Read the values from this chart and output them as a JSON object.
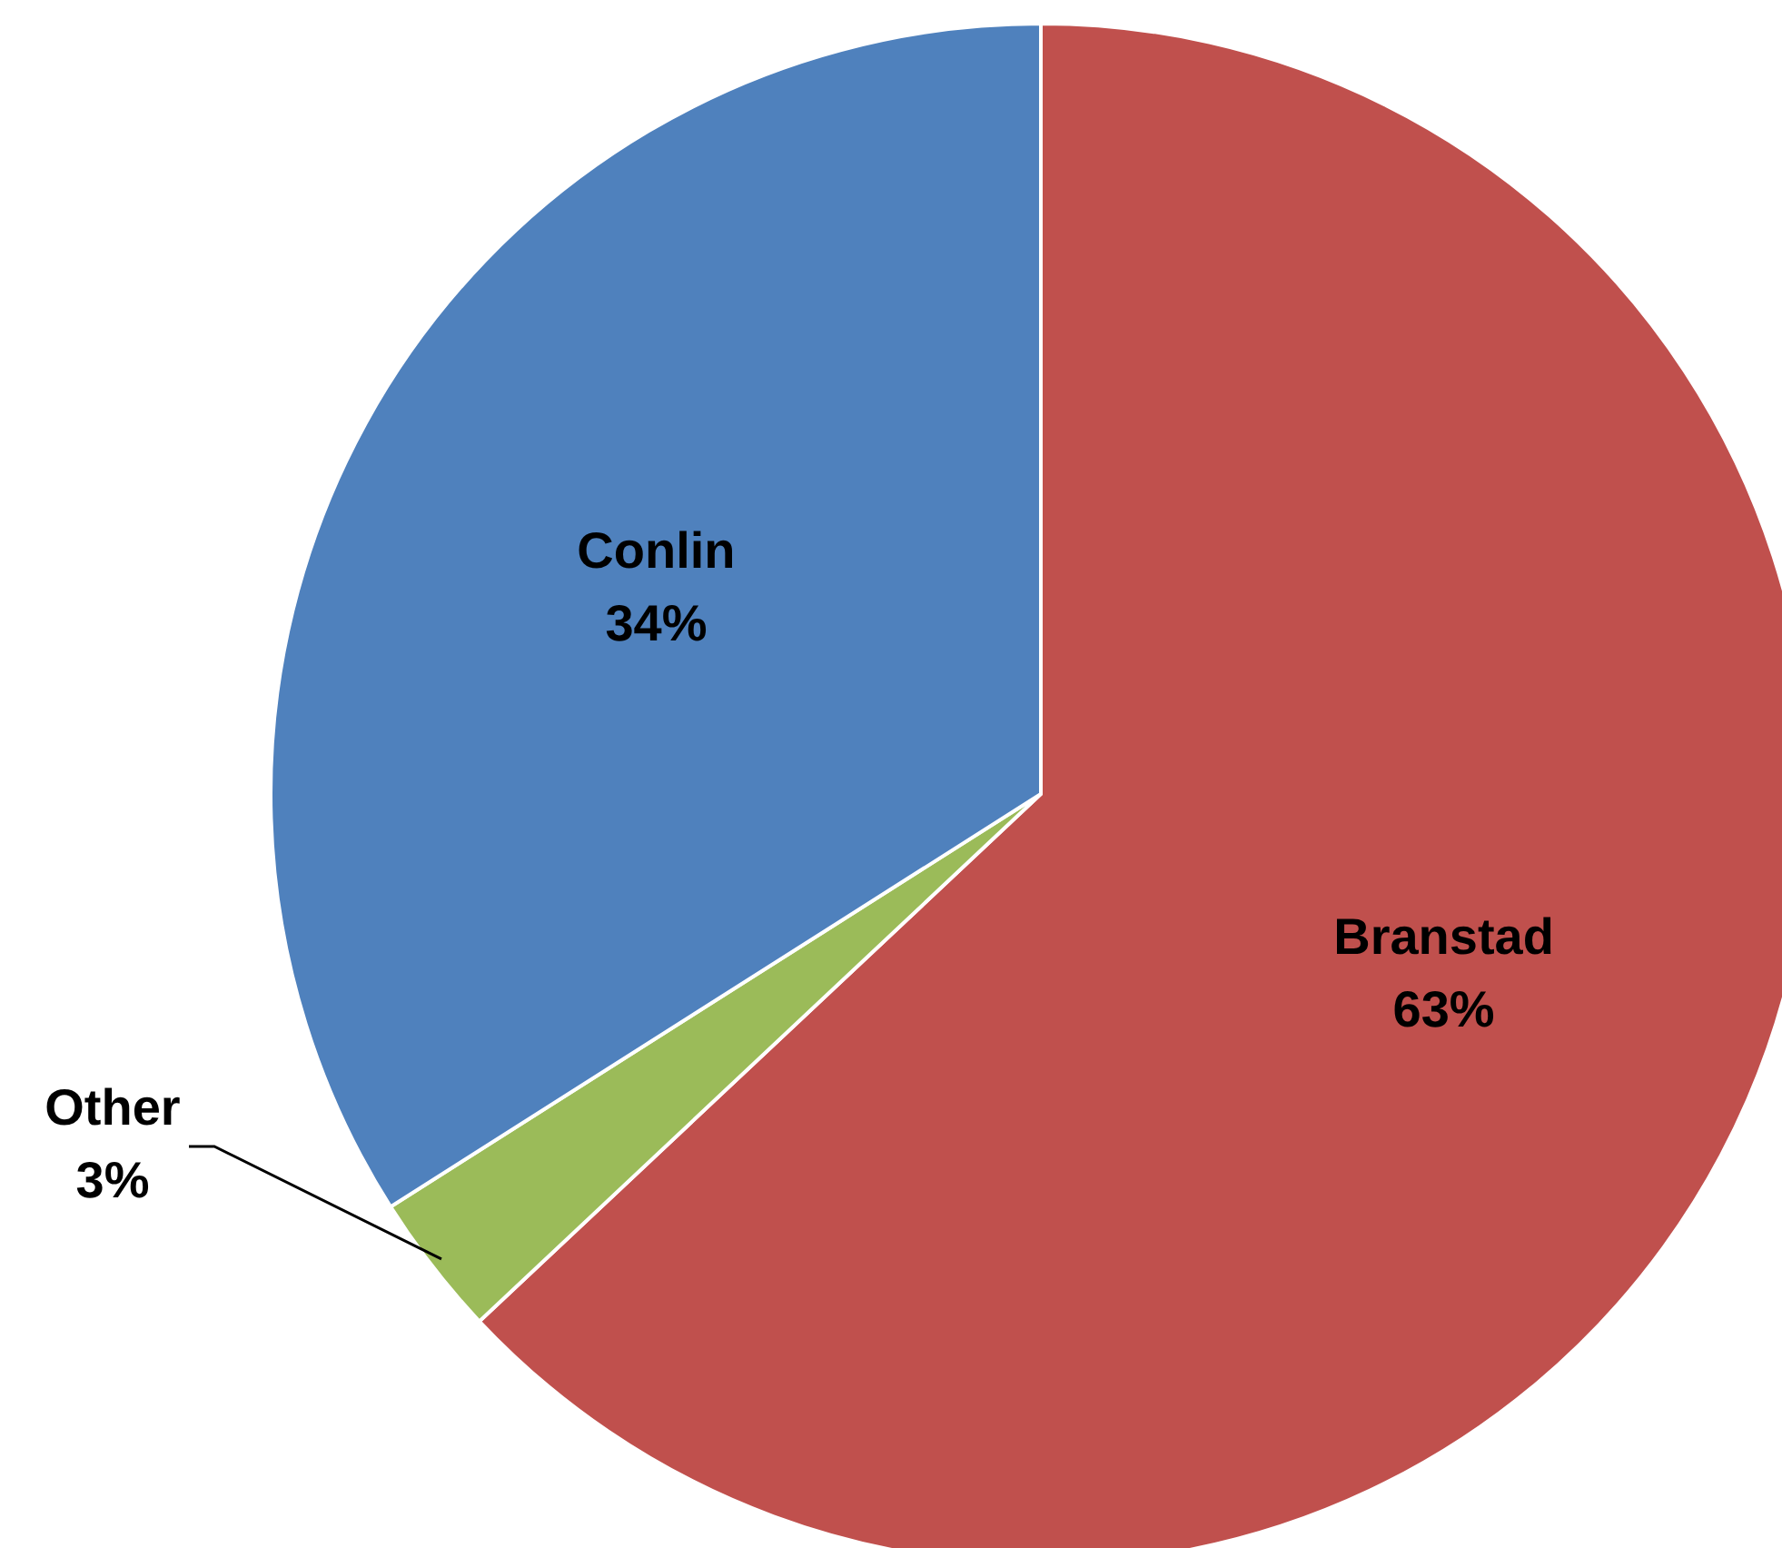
{
  "chart_data": {
    "type": "pie",
    "categories": [
      "Branstad",
      "Other",
      "Conlin"
    ],
    "values": [
      63,
      3,
      34
    ],
    "value_labels": [
      "63%",
      "3%",
      "34%"
    ],
    "colors": [
      "#c0504d",
      "#9bbb59",
      "#4f81bd"
    ],
    "legend": false
  }
}
